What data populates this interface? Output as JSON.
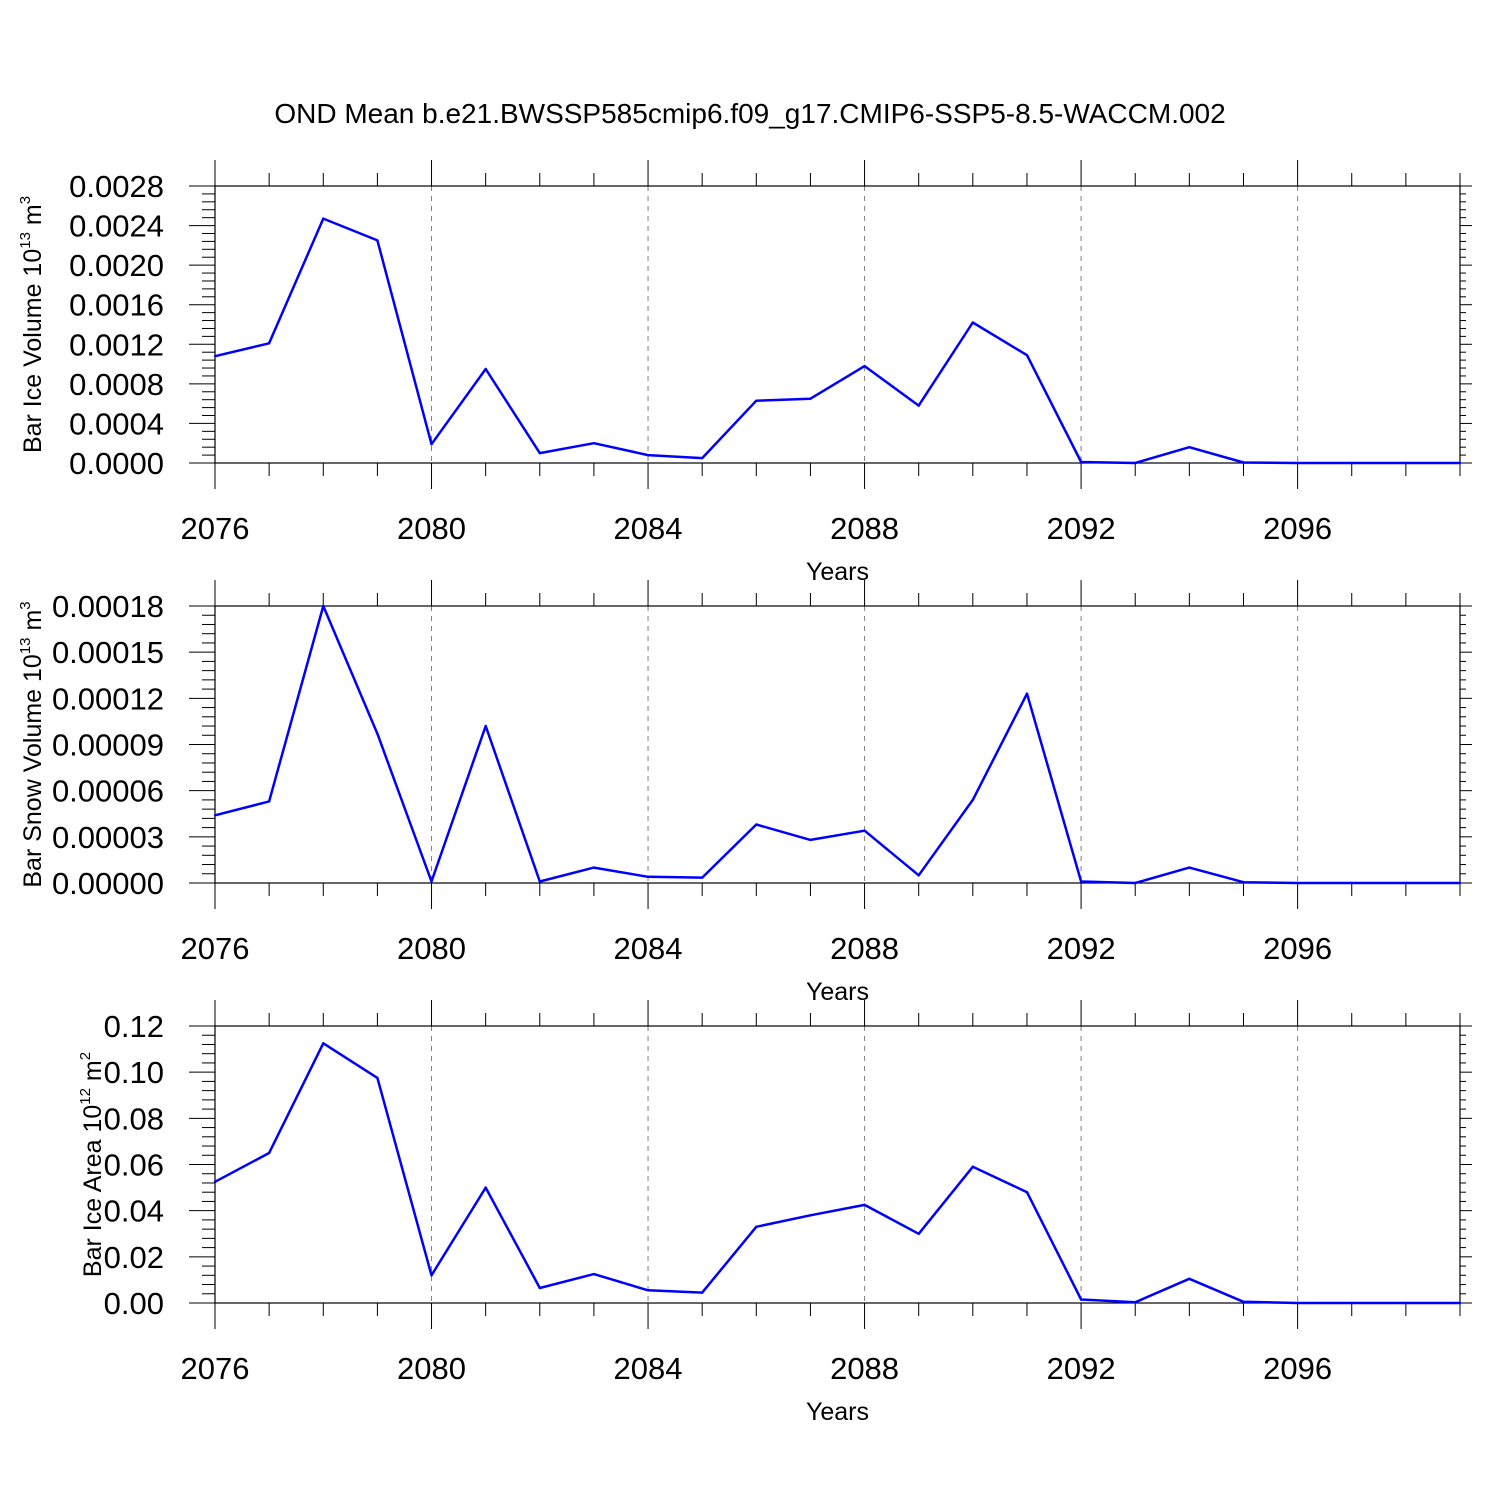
{
  "title": "OND Mean b.e21.BWSSP585cmip6.f09_g17.CMIP6-SSP5-8.5-WACCM.002",
  "style": {
    "line_color": "#0000ff",
    "grid_color": "#808080",
    "axis_color": "#000000"
  },
  "chart_data": [
    {
      "type": "line",
      "xlabel": "Years",
      "ylabel_main": "Bar Ice Volume 10",
      "ylabel_exp": "13",
      "ylabel_unit": " m",
      "ylabel_unit_exp": "3",
      "x": [
        2076,
        2077,
        2078,
        2079,
        2080,
        2081,
        2082,
        2083,
        2084,
        2085,
        2086,
        2087,
        2088,
        2089,
        2090,
        2091,
        2092,
        2093,
        2094,
        2095,
        2096,
        2097,
        2098,
        2099
      ],
      "values": [
        0.00108,
        0.00121,
        0.00247,
        0.00225,
        0.00019,
        0.00095,
        0.0001,
        0.0002,
        8e-05,
        5e-05,
        0.00063,
        0.00065,
        0.00098,
        0.00058,
        0.00142,
        0.00109,
        1e-05,
        0.0,
        0.00016,
        5e-06,
        0.0,
        0.0,
        0.0,
        0.0
      ],
      "xlim": [
        2076,
        2099
      ],
      "ylim": [
        0,
        0.0028
      ],
      "xticks": [
        "2076",
        "2080",
        "2084",
        "2088",
        "2092",
        "2096"
      ],
      "yticks": [
        "0.0000",
        "0.0004",
        "0.0008",
        "0.0012",
        "0.0016",
        "0.0020",
        "0.0024",
        "0.0028"
      ],
      "xgrid": "dashed vertical at major ticks"
    },
    {
      "type": "line",
      "xlabel": "Years",
      "ylabel_main": "Bar Snow Volume 10",
      "ylabel_exp": "13",
      "ylabel_unit": " m",
      "ylabel_unit_exp": "3",
      "x": [
        2076,
        2077,
        2078,
        2079,
        2080,
        2081,
        2082,
        2083,
        2084,
        2085,
        2086,
        2087,
        2088,
        2089,
        2090,
        2091,
        2092,
        2093,
        2094,
        2095,
        2096,
        2097,
        2098,
        2099
      ],
      "values": [
        4.4e-05,
        5.3e-05,
        0.00018,
        9.7e-05,
        1e-06,
        0.000102,
        1e-06,
        1e-05,
        4e-06,
        3.5e-06,
        3.8e-05,
        2.8e-05,
        3.4e-05,
        5e-06,
        5.4e-05,
        0.000123,
        1e-06,
        0.0,
        1e-05,
        5e-07,
        0.0,
        0.0,
        0.0,
        0.0
      ],
      "xlim": [
        2076,
        2099
      ],
      "ylim": [
        0,
        0.00018
      ],
      "xticks": [
        "2076",
        "2080",
        "2084",
        "2088",
        "2092",
        "2096"
      ],
      "yticks": [
        "0.00000",
        "0.00003",
        "0.00006",
        "0.00009",
        "0.00012",
        "0.00015",
        "0.00018"
      ],
      "xgrid": "dashed vertical at major ticks"
    },
    {
      "type": "line",
      "xlabel": "Years",
      "ylabel_main": "Bar Ice Area 10",
      "ylabel_exp": "12",
      "ylabel_unit": " m",
      "ylabel_unit_exp": "2",
      "x": [
        2076,
        2077,
        2078,
        2079,
        2080,
        2081,
        2082,
        2083,
        2084,
        2085,
        2086,
        2087,
        2088,
        2089,
        2090,
        2091,
        2092,
        2093,
        2094,
        2095,
        2096,
        2097,
        2098,
        2099
      ],
      "values": [
        0.0525,
        0.065,
        0.1125,
        0.0975,
        0.012,
        0.05,
        0.0065,
        0.0125,
        0.0055,
        0.0045,
        0.033,
        0.038,
        0.0425,
        0.03,
        0.059,
        0.048,
        0.0015,
        0.0003,
        0.0105,
        0.0005,
        0.0,
        0.0,
        0.0,
        0.0
      ],
      "xlim": [
        2076,
        2099
      ],
      "ylim": [
        0,
        0.12
      ],
      "xticks": [
        "2076",
        "2080",
        "2084",
        "2088",
        "2092",
        "2096"
      ],
      "yticks": [
        "0.00",
        "0.02",
        "0.04",
        "0.06",
        "0.08",
        "0.10",
        "0.12"
      ],
      "xgrid": "dashed vertical at major ticks"
    }
  ]
}
